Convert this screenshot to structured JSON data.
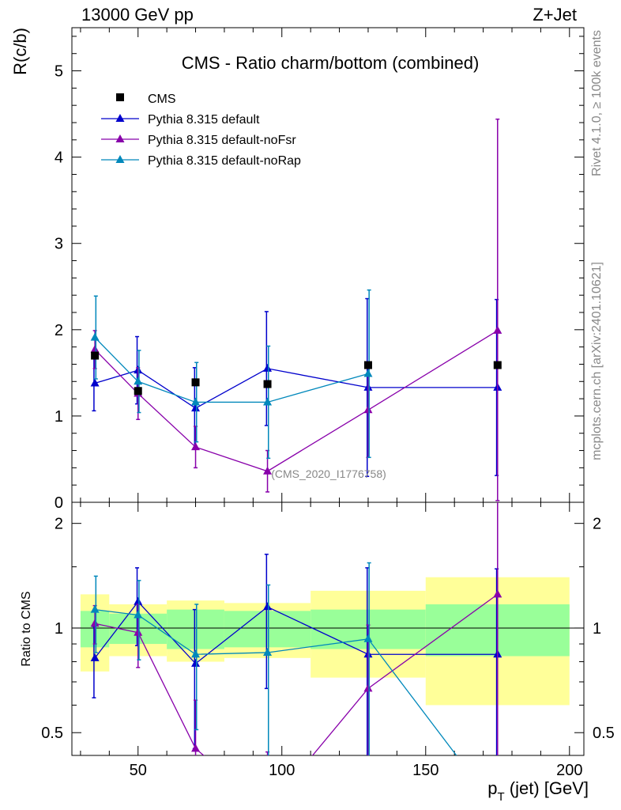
{
  "header": {
    "left": "13000 GeV pp",
    "right": "Z+Jet"
  },
  "side_labels": {
    "rivet": "Rivet 4.1.0, ≥ 100k events",
    "mcplots": "mcplots.cern.ch [arXiv:2401.10621]"
  },
  "watermark": "(CMS_2020_I1776758)",
  "chart_data": {
    "type": "line",
    "title": "CMS - Ratio charm/bottom (combined)",
    "xlabel": "p_T (jet) [GeV]",
    "xlabel_main": "p",
    "xlabel_sub": "T",
    "xlabel_rest": " (jet) [GeV]",
    "ylabel": "R(c/b)",
    "ratio_ylabel": "Ratio to CMS",
    "xlim": [
      27,
      205
    ],
    "ylim": [
      0,
      5.5
    ],
    "ratio_ylim": [
      0.43,
      2.3
    ],
    "ratio_log": true,
    "x_ticks": [
      50,
      100,
      150,
      200
    ],
    "y_ticks": [
      0,
      1,
      2,
      3,
      4,
      5
    ],
    "ratio_ticks": [
      0.5,
      1,
      2
    ],
    "bins": [
      [
        30,
        40
      ],
      [
        40,
        60
      ],
      [
        60,
        80
      ],
      [
        80,
        110
      ],
      [
        110,
        150
      ],
      [
        150,
        200
      ]
    ],
    "data": {
      "name": "CMS",
      "x": [
        35,
        50,
        70,
        95,
        130,
        175
      ],
      "y": [
        1.7,
        1.29,
        1.39,
        1.37,
        1.59,
        1.59
      ],
      "rel_band_inner": [
        0.12,
        0.1,
        0.13,
        0.12,
        0.13,
        0.17
      ],
      "rel_band_outer": [
        0.25,
        0.17,
        0.2,
        0.18,
        0.28,
        0.4
      ]
    },
    "series": [
      {
        "name": "Pythia 8.315 default",
        "color": "#0000cc",
        "x": [
          35,
          50,
          70,
          95,
          130,
          175
        ],
        "y": [
          1.38,
          1.53,
          1.09,
          1.55,
          1.33,
          1.33
        ],
        "err": [
          0.32,
          0.39,
          0.47,
          0.66,
          1.03,
          1.02
        ],
        "ratio": [
          0.82,
          1.19,
          0.79,
          1.15,
          0.84,
          0.84
        ],
        "ratio_err": [
          0.19,
          0.3,
          0.34,
          0.48,
          0.65,
          0.64
        ]
      },
      {
        "name": "Pythia 8.315 default-noFsr",
        "color": "#8800aa",
        "x": [
          35,
          50,
          70,
          95,
          130,
          175
        ],
        "y": [
          1.77,
          1.26,
          0.64,
          0.36,
          1.07,
          1.99
        ],
        "err": [
          0.22,
          0.3,
          0.24,
          0.24,
          0.55,
          2.45
        ],
        "ratio": [
          1.03,
          0.97,
          0.45,
          0.26,
          0.67,
          1.25
        ],
        "ratio_err": [
          0.13,
          0.2,
          0.17,
          0.18,
          0.35,
          1.54
        ]
      },
      {
        "name": "Pythia 8.315 default-noRap",
        "color": "#0088bb",
        "x": [
          35,
          50,
          70,
          95,
          130,
          175
        ],
        "y": [
          1.91,
          1.4,
          1.16,
          1.16,
          1.49,
          0.0
        ],
        "err": [
          0.48,
          0.36,
          0.46,
          0.65,
          0.97,
          0.0
        ],
        "ratio": [
          1.13,
          1.09,
          0.84,
          0.85,
          0.93,
          0.0
        ],
        "ratio_err": [
          0.28,
          0.28,
          0.33,
          0.48,
          0.61,
          0.0
        ]
      }
    ]
  }
}
